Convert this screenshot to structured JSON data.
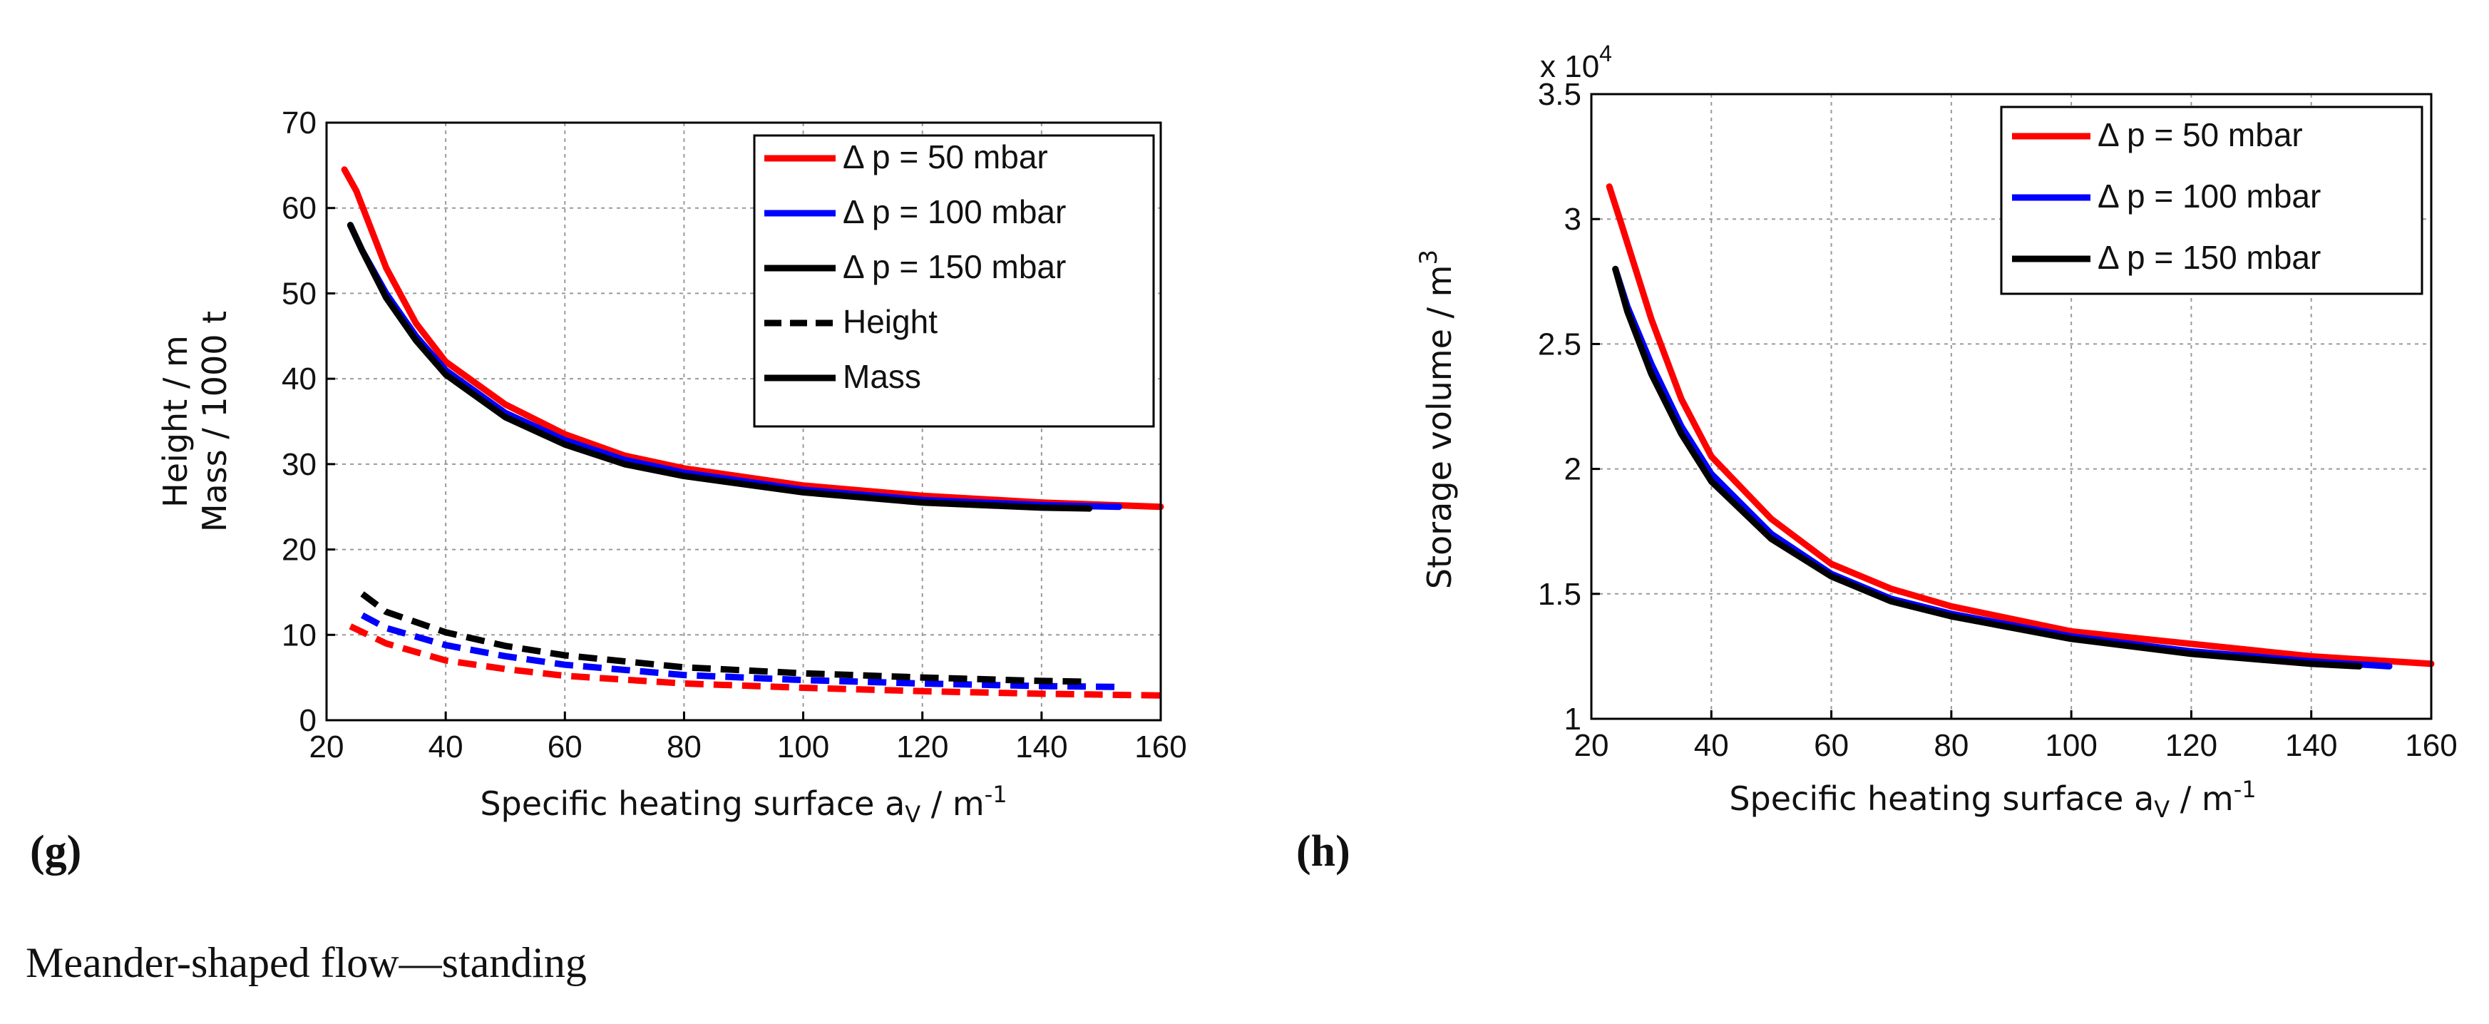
{
  "caption": "Meander-shaped flow—standing",
  "colors": {
    "red": "#ff0000",
    "blue": "#0000ff",
    "black": "#000000"
  },
  "chart_data": [
    {
      "panel": "(g)",
      "type": "line",
      "xlabel": "Specific heating surface a",
      "xlabel_sub": "V",
      "xlabel_unit": " / m",
      "xlabel_sup": "-1",
      "ylabel_line1": "Height / m",
      "ylabel_line2": "Mass / 1000 t",
      "xlim": [
        20,
        160
      ],
      "ylim": [
        0,
        70
      ],
      "xticks": [
        "20",
        "40",
        "60",
        "80",
        "100",
        "120",
        "140",
        "160"
      ],
      "yticks": [
        "0",
        "10",
        "20",
        "30",
        "40",
        "50",
        "60",
        "70"
      ],
      "grid": true,
      "legend_position": "top-right",
      "legend": [
        {
          "label": "Δ p = 50 mbar",
          "color": "#ff0000",
          "style": "solid"
        },
        {
          "label": "Δ p = 100 mbar",
          "color": "#0000ff",
          "style": "solid"
        },
        {
          "label": "Δ p = 150 mbar",
          "color": "#000000",
          "style": "solid"
        },
        {
          "label": "Height",
          "color": "#000000",
          "style": "dashed"
        },
        {
          "label": "Mass",
          "color": "#000000",
          "style": "solid"
        }
      ],
      "series": [
        {
          "name": "Mass, Δ p = 50 mbar",
          "color": "#ff0000",
          "style": "solid",
          "x": [
            23,
            25,
            30,
            35,
            40,
            50,
            60,
            70,
            80,
            100,
            120,
            140,
            160
          ],
          "values": [
            64.5,
            62,
            53,
            46.5,
            42,
            37,
            33.5,
            31,
            29.5,
            27.5,
            26.3,
            25.5,
            25
          ]
        },
        {
          "name": "Mass, Δ p = 100 mbar",
          "color": "#0000ff",
          "style": "solid",
          "x": [
            24,
            26,
            30,
            35,
            40,
            50,
            60,
            70,
            80,
            100,
            120,
            140,
            153
          ],
          "values": [
            58,
            55,
            50,
            45,
            41,
            36,
            32.8,
            30.5,
            29,
            27,
            25.8,
            25.2,
            25
          ]
        },
        {
          "name": "Mass, Δ p = 150 mbar",
          "color": "#000000",
          "style": "solid",
          "x": [
            24,
            26,
            30,
            35,
            40,
            50,
            60,
            70,
            80,
            100,
            120,
            140,
            148
          ],
          "values": [
            58,
            55,
            49.5,
            44.5,
            40.5,
            35.5,
            32.3,
            30,
            28.6,
            26.7,
            25.5,
            24.9,
            24.8
          ]
        },
        {
          "name": "Height, Δ p = 50 mbar",
          "color": "#ff0000",
          "style": "dashed",
          "x": [
            24,
            30,
            40,
            50,
            60,
            80,
            100,
            120,
            140,
            160
          ],
          "values": [
            11,
            9,
            7,
            6,
            5.2,
            4.3,
            3.8,
            3.4,
            3.1,
            2.9
          ]
        },
        {
          "name": "Height, Δ p = 100 mbar",
          "color": "#0000ff",
          "style": "dashed",
          "x": [
            26,
            30,
            40,
            50,
            60,
            80,
            100,
            120,
            140,
            153
          ],
          "values": [
            12.3,
            10.8,
            8.8,
            7.5,
            6.5,
            5.3,
            4.7,
            4.3,
            4.0,
            3.9
          ]
        },
        {
          "name": "Height, Δ p = 150 mbar",
          "color": "#000000",
          "style": "dashed",
          "x": [
            26,
            30,
            40,
            50,
            60,
            80,
            100,
            120,
            140,
            148
          ],
          "values": [
            14.8,
            12.7,
            10.3,
            8.7,
            7.6,
            6.2,
            5.5,
            5.0,
            4.6,
            4.5
          ]
        }
      ]
    },
    {
      "panel": "(h)",
      "type": "line",
      "xlabel": "Specific heating surface a",
      "xlabel_sub": "V",
      "xlabel_unit": " / m",
      "xlabel_sup": "-1",
      "ylabel": "Storage volume / m",
      "ylabel_sup": "3",
      "y_multiplier": "x 10",
      "y_multiplier_exp": "4",
      "xlim": [
        20,
        160
      ],
      "ylim": [
        1,
        3.5
      ],
      "xticks": [
        "20",
        "40",
        "60",
        "80",
        "100",
        "120",
        "140",
        "160"
      ],
      "yticks": [
        "1",
        "1.5",
        "2",
        "2.5",
        "3",
        "3.5"
      ],
      "grid": true,
      "legend_position": "top-right",
      "legend": [
        {
          "label": "Δ p = 50 mbar",
          "color": "#ff0000",
          "style": "solid"
        },
        {
          "label": "Δ p = 100 mbar",
          "color": "#0000ff",
          "style": "solid"
        },
        {
          "label": "Δ p = 150 mbar",
          "color": "#000000",
          "style": "solid"
        }
      ],
      "series": [
        {
          "name": "Δ p = 50 mbar",
          "color": "#ff0000",
          "style": "solid",
          "x": [
            23,
            25,
            30,
            35,
            40,
            50,
            60,
            70,
            80,
            100,
            120,
            140,
            160
          ],
          "values": [
            3.13,
            2.98,
            2.6,
            2.28,
            2.05,
            1.8,
            1.62,
            1.52,
            1.45,
            1.35,
            1.3,
            1.25,
            1.22
          ]
        },
        {
          "name": "Δ p = 100 mbar",
          "color": "#0000ff",
          "style": "solid",
          "x": [
            24,
            26,
            30,
            35,
            40,
            50,
            60,
            70,
            80,
            100,
            120,
            140,
            153
          ],
          "values": [
            2.8,
            2.65,
            2.42,
            2.17,
            1.98,
            1.74,
            1.58,
            1.48,
            1.42,
            1.33,
            1.27,
            1.23,
            1.21
          ]
        },
        {
          "name": "Δ p = 150 mbar",
          "color": "#000000",
          "style": "solid",
          "x": [
            24,
            26,
            30,
            35,
            40,
            50,
            60,
            70,
            80,
            100,
            120,
            140,
            148
          ],
          "values": [
            2.8,
            2.63,
            2.38,
            2.14,
            1.95,
            1.72,
            1.57,
            1.47,
            1.41,
            1.32,
            1.26,
            1.22,
            1.21
          ]
        }
      ]
    }
  ]
}
